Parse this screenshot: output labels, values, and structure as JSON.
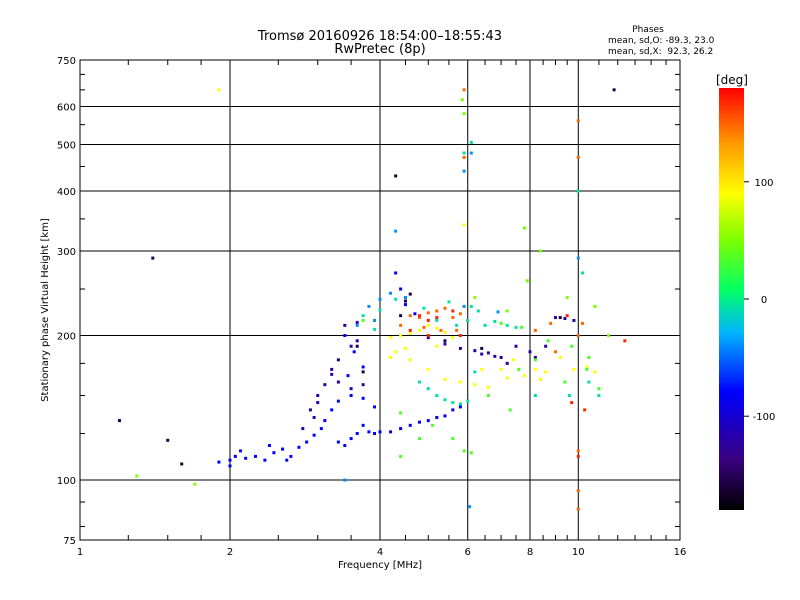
{
  "chart_data": {
    "type": "scatter",
    "title": "Tromsø 20160926 18:54:00–18:55:43",
    "subtitle": "RwPretec (8p)",
    "xlabel": "Frequency [MHz]",
    "ylabel": "Stationary phase Virtual Height [km]",
    "x_scale": "log",
    "y_scale": "log",
    "xlim": [
      1,
      16
    ],
    "ylim": [
      75,
      750
    ],
    "x_ticks": [
      1,
      2,
      4,
      6,
      8,
      10,
      16
    ],
    "y_ticks": [
      75,
      100,
      200,
      300,
      400,
      500,
      600,
      750
    ],
    "grid": true,
    "stats": {
      "header": "Phases",
      "line_o": "mean, sd,O: -89.3, 23.0",
      "line_x": "mean, sd,X:  92.3, 26.2"
    },
    "colorbar": {
      "label": "[deg]",
      "ticks": [
        "100",
        "0",
        "-100"
      ],
      "tick_values": [
        100,
        0,
        -100
      ],
      "range": [
        -180,
        180
      ]
    },
    "series": [
      {
        "color_value": -100,
        "points": [
          [
            1.9,
            109
          ],
          [
            2.0,
            110
          ],
          [
            2.05,
            112
          ],
          [
            2.15,
            111
          ],
          [
            2.25,
            112
          ],
          [
            2.35,
            110
          ],
          [
            2.45,
            114
          ],
          [
            2.55,
            116
          ],
          [
            2.65,
            112
          ],
          [
            2.75,
            117
          ],
          [
            2.85,
            120
          ],
          [
            2.95,
            124
          ],
          [
            3.05,
            128
          ],
          [
            3.1,
            133
          ],
          [
            3.2,
            140
          ],
          [
            3.3,
            120
          ],
          [
            3.4,
            118
          ],
          [
            3.5,
            122
          ],
          [
            3.6,
            125
          ],
          [
            3.7,
            130
          ],
          [
            3.8,
            126
          ],
          [
            3.9,
            125
          ],
          [
            4.0,
            126
          ],
          [
            4.2,
            126
          ],
          [
            4.4,
            128
          ],
          [
            4.6,
            130
          ],
          [
            4.8,
            132
          ],
          [
            5.0,
            133
          ],
          [
            5.2,
            135
          ],
          [
            5.4,
            136
          ],
          [
            5.6,
            140
          ],
          [
            5.8,
            142
          ],
          [
            4.4,
            250
          ],
          [
            4.5,
            232
          ],
          [
            4.7,
            222
          ],
          [
            4.3,
            270
          ],
          [
            2.0,
            107
          ],
          [
            2.1,
            115
          ],
          [
            2.4,
            118
          ],
          [
            2.6,
            110
          ],
          [
            3.3,
            146
          ],
          [
            3.5,
            150
          ],
          [
            3.7,
            148
          ],
          [
            3.9,
            142
          ],
          [
            3.45,
            165
          ],
          [
            3.7,
            172
          ],
          [
            3.4,
            200
          ],
          [
            3.55,
            185
          ]
        ]
      },
      {
        "color_value": -130,
        "points": [
          [
            2.8,
            128
          ],
          [
            2.9,
            140
          ],
          [
            3.0,
            150
          ],
          [
            3.1,
            158
          ],
          [
            3.2,
            166
          ],
          [
            3.3,
            160
          ],
          [
            3.5,
            155
          ],
          [
            3.7,
            158
          ],
          [
            3.3,
            178
          ],
          [
            3.5,
            190
          ],
          [
            3.6,
            195
          ],
          [
            3.4,
            210
          ],
          [
            3.6,
            213
          ],
          [
            3.2,
            170
          ],
          [
            2.95,
            135
          ],
          [
            3.0,
            145
          ],
          [
            5.0,
            198
          ],
          [
            5.4,
            192
          ],
          [
            5.8,
            188
          ],
          [
            6.2,
            186
          ],
          [
            6.6,
            184
          ],
          [
            7.0,
            180
          ],
          [
            7.5,
            190
          ],
          [
            8.0,
            185
          ],
          [
            8.6,
            190
          ],
          [
            9.0,
            218
          ],
          [
            9.4,
            217
          ],
          [
            9.8,
            215
          ],
          [
            6.4,
            183
          ],
          [
            6.8,
            181
          ],
          [
            7.2,
            175
          ],
          [
            8.2,
            180
          ]
        ]
      },
      {
        "color_value": 90,
        "points": [
          [
            4.2,
            198
          ],
          [
            4.4,
            200
          ],
          [
            4.6,
            202
          ],
          [
            4.8,
            205
          ],
          [
            5.0,
            210
          ],
          [
            5.2,
            207
          ],
          [
            5.4,
            203
          ],
          [
            5.6,
            198
          ],
          [
            4.3,
            185
          ],
          [
            4.6,
            178
          ],
          [
            5.0,
            170
          ],
          [
            5.4,
            162
          ],
          [
            5.8,
            160
          ],
          [
            6.2,
            158
          ],
          [
            6.6,
            156
          ],
          [
            7.0,
            170
          ],
          [
            7.4,
            178
          ],
          [
            7.8,
            165
          ],
          [
            8.2,
            170
          ],
          [
            8.6,
            168
          ],
          [
            9.2,
            180
          ],
          [
            9.8,
            170
          ],
          [
            10.4,
            172
          ],
          [
            10.8,
            168
          ],
          [
            4.2,
            180
          ],
          [
            4.5,
            188
          ],
          [
            5.2,
            190
          ],
          [
            6.4,
            170
          ],
          [
            7.2,
            163
          ],
          [
            8.4,
            162
          ],
          [
            1.9,
            650
          ],
          [
            5.9,
            340
          ]
        ]
      },
      {
        "color_value": 150,
        "points": [
          [
            4.4,
            210
          ],
          [
            4.6,
            220
          ],
          [
            4.8,
            218
          ],
          [
            5.0,
            223
          ],
          [
            5.2,
            225
          ],
          [
            5.4,
            228
          ],
          [
            5.6,
            218
          ],
          [
            5.8,
            222
          ],
          [
            6.0,
            215
          ],
          [
            5.3,
            205
          ],
          [
            4.9,
            208
          ],
          [
            5.7,
            205
          ],
          [
            8.2,
            205
          ],
          [
            8.8,
            212
          ],
          [
            10.0,
            200
          ],
          [
            10.2,
            212
          ],
          [
            9.0,
            185
          ],
          [
            10.0,
            115
          ],
          [
            10.0,
            95
          ],
          [
            10.0,
            87
          ],
          [
            10.0,
            470
          ],
          [
            10.0,
            560
          ],
          [
            5.9,
            650
          ],
          [
            5.9,
            470
          ]
        ]
      },
      {
        "color_value": -20,
        "points": [
          [
            4.8,
            160
          ],
          [
            5.0,
            155
          ],
          [
            5.2,
            150
          ],
          [
            5.4,
            147
          ],
          [
            5.6,
            145
          ],
          [
            5.8,
            144
          ],
          [
            6.0,
            146
          ],
          [
            6.2,
            168
          ],
          [
            6.5,
            210
          ],
          [
            6.8,
            214
          ],
          [
            7.2,
            210
          ],
          [
            7.5,
            208
          ],
          [
            6.1,
            230
          ],
          [
            6.0,
            215
          ],
          [
            5.5,
            235
          ],
          [
            4.9,
            228
          ],
          [
            4.3,
            238
          ],
          [
            4.0,
            226
          ],
          [
            3.9,
            206
          ],
          [
            3.7,
            220
          ],
          [
            10.5,
            160
          ],
          [
            11.0,
            150
          ],
          [
            8.2,
            150
          ],
          [
            9.6,
            150
          ],
          [
            5.9,
            480
          ],
          [
            6.1,
            505
          ],
          [
            10.0,
            400
          ],
          [
            5.2,
            215
          ],
          [
            5.7,
            210
          ],
          [
            6.3,
            225
          ],
          [
            10.2,
            270
          ],
          [
            10.8,
            230
          ]
        ]
      },
      {
        "color_value": 30,
        "points": [
          [
            3.7,
            215
          ],
          [
            4.4,
            138
          ],
          [
            4.8,
            122
          ],
          [
            5.1,
            130
          ],
          [
            5.9,
            115
          ],
          [
            6.1,
            114
          ],
          [
            6.6,
            150
          ],
          [
            7.3,
            140
          ],
          [
            7.6,
            170
          ],
          [
            8.2,
            178
          ],
          [
            9.4,
            160
          ],
          [
            10.4,
            170
          ],
          [
            7.0,
            212
          ],
          [
            7.7,
            208
          ],
          [
            8.7,
            195
          ],
          [
            9.7,
            190
          ],
          [
            10.5,
            180
          ],
          [
            11.0,
            155
          ],
          [
            4.4,
            112
          ],
          [
            5.6,
            122
          ]
        ]
      },
      {
        "color_value": -160,
        "points": [
          [
            1.2,
            133
          ],
          [
            1.4,
            290
          ],
          [
            1.6,
            108
          ],
          [
            1.5,
            121
          ],
          [
            4.3,
            430
          ],
          [
            11.8,
            650
          ],
          [
            4.4,
            220
          ],
          [
            4.5,
            240
          ],
          [
            4.6,
            244
          ],
          [
            4.5,
            236
          ],
          [
            3.6,
            190
          ],
          [
            3.7,
            168
          ],
          [
            5.4,
            195
          ],
          [
            6.4,
            188
          ],
          [
            9.2,
            218
          ]
        ]
      },
      {
        "color_value": 170,
        "points": [
          [
            4.8,
            220
          ],
          [
            5.0,
            215
          ],
          [
            5.2,
            218
          ],
          [
            5.6,
            225
          ],
          [
            5.0,
            200
          ],
          [
            10.0,
            112
          ],
          [
            12.4,
            195
          ],
          [
            9.5,
            220
          ],
          [
            9.7,
            145
          ],
          [
            10.3,
            140
          ],
          [
            4.6,
            205
          ],
          [
            5.8,
            200
          ]
        ]
      },
      {
        "color_value": 50,
        "points": [
          [
            1.3,
            102
          ],
          [
            1.7,
            98
          ],
          [
            5.9,
            580
          ],
          [
            5.85,
            620
          ],
          [
            7.9,
            260
          ],
          [
            9.5,
            240
          ],
          [
            10.8,
            230
          ],
          [
            11.5,
            200
          ],
          [
            7.8,
            335
          ],
          [
            8.4,
            300
          ],
          [
            6.2,
            240
          ],
          [
            7.2,
            225
          ]
        ]
      },
      {
        "color_value": -60,
        "points": [
          [
            3.4,
            100
          ],
          [
            4.3,
            330
          ],
          [
            5.9,
            440
          ],
          [
            6.1,
            480
          ],
          [
            6.05,
            88
          ],
          [
            6.9,
            224
          ],
          [
            4.5,
            240
          ],
          [
            5.9,
            230
          ],
          [
            3.6,
            210
          ],
          [
            3.8,
            230
          ],
          [
            4.0,
            238
          ],
          [
            4.2,
            245
          ],
          [
            3.9,
            215
          ],
          [
            10.0,
            290
          ]
        ]
      }
    ]
  }
}
